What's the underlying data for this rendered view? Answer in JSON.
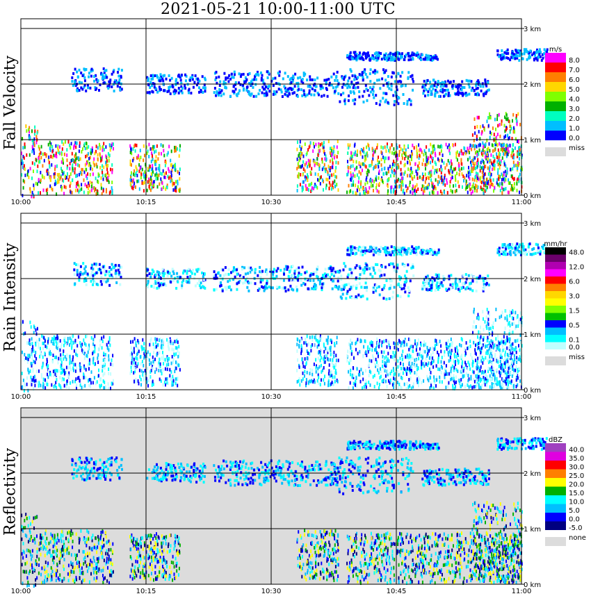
{
  "title": "2021-05-21   10:00-11:00 UTC",
  "chart_data": [
    {
      "type": "heatmap",
      "ylabel": "Fall Velocity",
      "x_ticks": [
        "10:00",
        "10:15",
        "10:30",
        "10:45",
        "11:00"
      ],
      "y_ticks": [
        "0 km",
        "1 km",
        "2 km",
        "3 km"
      ],
      "ylim_km": [
        0,
        3.5
      ],
      "grid": true,
      "legend": {
        "unit": "m/s",
        "position": "right",
        "levels": [
          {
            "label": "8.0",
            "color": "#ff00ff"
          },
          {
            "label": "7.0",
            "color": "#ff0000"
          },
          {
            "label": "6.0",
            "color": "#ff7f00"
          },
          {
            "label": "5.0",
            "color": "#ffd700"
          },
          {
            "label": "4.0",
            "color": "#7fff00"
          },
          {
            "label": "3.0",
            "color": "#00b000"
          },
          {
            "label": "2.0",
            "color": "#00ffc0"
          },
          {
            "label": "1.0",
            "color": "#00bfff"
          },
          {
            "label": "0.0",
            "color": "#0000ff"
          }
        ],
        "missing": {
          "label": "miss",
          "color": "#dcdcdc"
        }
      }
    },
    {
      "type": "heatmap",
      "ylabel": "Rain Intensity",
      "x_ticks": [
        "10:00",
        "10:15",
        "10:30",
        "10:45",
        "11:00"
      ],
      "y_ticks": [
        "0 km",
        "1 km",
        "2 km",
        "3 km"
      ],
      "ylim_km": [
        0,
        3.5
      ],
      "grid": true,
      "legend": {
        "unit": "mm/hr",
        "position": "right",
        "levels": [
          {
            "label": "48.0",
            "color": "#000000"
          },
          {
            "label": "",
            "color": "#6b006b"
          },
          {
            "label": "12.0",
            "color": "#b000b0"
          },
          {
            "label": "",
            "color": "#ff00ff"
          },
          {
            "label": "6.0",
            "color": "#ff0000"
          },
          {
            "label": "",
            "color": "#ff7f00"
          },
          {
            "label": "3.0",
            "color": "#ffd700"
          },
          {
            "label": "",
            "color": "#ffff00"
          },
          {
            "label": "1.5",
            "color": "#7fff00"
          },
          {
            "label": "",
            "color": "#00c000"
          },
          {
            "label": "0.5",
            "color": "#0000ff"
          },
          {
            "label": "",
            "color": "#00bfff"
          },
          {
            "label": "0.1",
            "color": "#00ffff"
          },
          {
            "label": "0.0",
            "color": "#c0ffff"
          }
        ],
        "missing": {
          "label": "miss",
          "color": "#dcdcdc"
        }
      }
    },
    {
      "type": "heatmap",
      "ylabel": "Reflectivity",
      "x_ticks": [
        "10:00",
        "10:15",
        "10:30",
        "10:45",
        "11:00"
      ],
      "y_ticks": [
        "0 km",
        "1 km",
        "2 km",
        "3 km"
      ],
      "ylim_km": [
        0,
        3.5
      ],
      "grid": true,
      "legend": {
        "unit": "dBZ",
        "position": "right",
        "levels": [
          {
            "label": "40.0",
            "color": "#a040c0"
          },
          {
            "label": "35.0",
            "color": "#e000e0"
          },
          {
            "label": "30.0",
            "color": "#ff0000"
          },
          {
            "label": "25.0",
            "color": "#ff7f00"
          },
          {
            "label": "20.0",
            "color": "#ffff00"
          },
          {
            "label": "15.0",
            "color": "#00b000"
          },
          {
            "label": "10.0",
            "color": "#00ffff"
          },
          {
            "label": "5.0",
            "color": "#00bfff"
          },
          {
            "label": "0.0",
            "color": "#0000ff"
          },
          {
            "label": "-5.0",
            "color": "#000080"
          }
        ],
        "missing": {
          "label": "none",
          "color": "#dcdcdc"
        }
      }
    }
  ]
}
